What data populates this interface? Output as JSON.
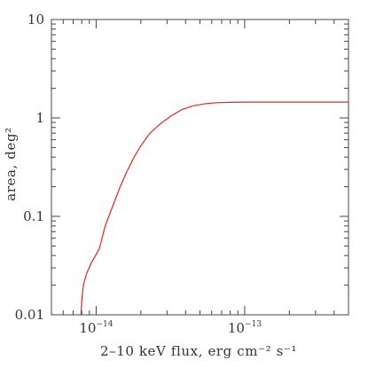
{
  "chart_data": {
    "type": "line",
    "title": "",
    "xlabel": "2–10 keV flux, erg cm⁻² s⁻¹",
    "ylabel": "area, deg²",
    "xscale": "log",
    "yscale": "log",
    "xlim": [
      5e-15,
      5e-13
    ],
    "ylim": [
      0.01,
      10
    ],
    "x_ticklabels": [
      {
        "value": 1e-14,
        "base": "10",
        "exp": "−14"
      },
      {
        "value": 1e-13,
        "base": "10",
        "exp": "−13"
      }
    ],
    "y_ticklabels": [
      {
        "value": 0.01,
        "label": "0.01"
      },
      {
        "value": 0.1,
        "label": "0.1"
      },
      {
        "value": 1,
        "label": "1"
      },
      {
        "value": 10,
        "label": "10"
      }
    ],
    "grid": false,
    "legend": "none",
    "colors": {
      "line": "#e8241c",
      "axes": "#444444"
    },
    "series": [
      {
        "x": [
          7.9e-15,
          8e-15,
          8.2e-15,
          8.6e-15,
          9.2e-15,
          9.8e-15,
          1.05e-14,
          1.15e-14,
          1.3e-14,
          1.45e-14,
          1.6e-14,
          1.8e-14,
          2e-14,
          2.3e-14,
          2.7e-14,
          3.2e-14,
          3.8e-14,
          4.5e-14,
          5.5e-14,
          6.5e-14,
          8e-14,
          1e-13,
          1.5e-13,
          2e-13,
          3e-13,
          5e-13
        ],
        "y": [
          0.01,
          0.014,
          0.02,
          0.026,
          0.033,
          0.039,
          0.047,
          0.08,
          0.13,
          0.2,
          0.28,
          0.4,
          0.52,
          0.7,
          0.87,
          1.05,
          1.22,
          1.33,
          1.4,
          1.43,
          1.44,
          1.45,
          1.45,
          1.45,
          1.45,
          1.45
        ]
      }
    ]
  }
}
